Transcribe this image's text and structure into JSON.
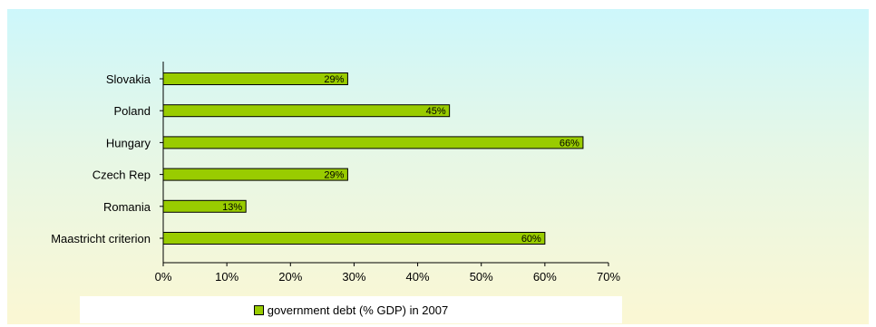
{
  "chart_data": {
    "type": "bar",
    "orientation": "horizontal",
    "categories": [
      "Slovakia",
      "Poland",
      "Hungary",
      "Czech Rep",
      "Romania",
      "Maastricht criterion"
    ],
    "series": [
      {
        "name": "government debt (% GDP) in 2007",
        "values": [
          29,
          45,
          66,
          29,
          13,
          60
        ],
        "data_labels": [
          "29%",
          "45%",
          "66%",
          "29%",
          "13%",
          "60%"
        ],
        "color": "#99cc00"
      }
    ],
    "xlim": [
      0,
      70
    ],
    "xticks": [
      0,
      10,
      20,
      30,
      40,
      50,
      60,
      70
    ],
    "xtick_labels": [
      "0%",
      "10%",
      "20%",
      "30%",
      "40%",
      "50%",
      "60%",
      "70%"
    ],
    "grid": false,
    "legend_position": "bottom"
  },
  "colors": {
    "bar": "#99cc00",
    "bar_border": "#000000"
  }
}
